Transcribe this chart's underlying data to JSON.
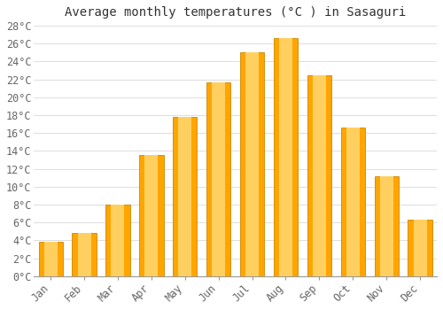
{
  "title": "Average monthly temperatures (°C ) in Sasaguri",
  "months": [
    "Jan",
    "Feb",
    "Mar",
    "Apr",
    "May",
    "Jun",
    "Jul",
    "Aug",
    "Sep",
    "Oct",
    "Nov",
    "Dec"
  ],
  "temperatures": [
    3.8,
    4.8,
    8.0,
    13.5,
    17.8,
    21.7,
    25.0,
    26.6,
    22.5,
    16.6,
    11.2,
    6.3
  ],
  "bar_color": "#FFA500",
  "bar_edge_color": "#CC8800",
  "bar_highlight": "#FFD060",
  "ylim": [
    0,
    28
  ],
  "yticks": [
    0,
    2,
    4,
    6,
    8,
    10,
    12,
    14,
    16,
    18,
    20,
    22,
    24,
    26,
    28
  ],
  "background_color": "#FFFFFF",
  "grid_color": "#DDDDDD",
  "title_fontsize": 10,
  "tick_fontsize": 8.5
}
